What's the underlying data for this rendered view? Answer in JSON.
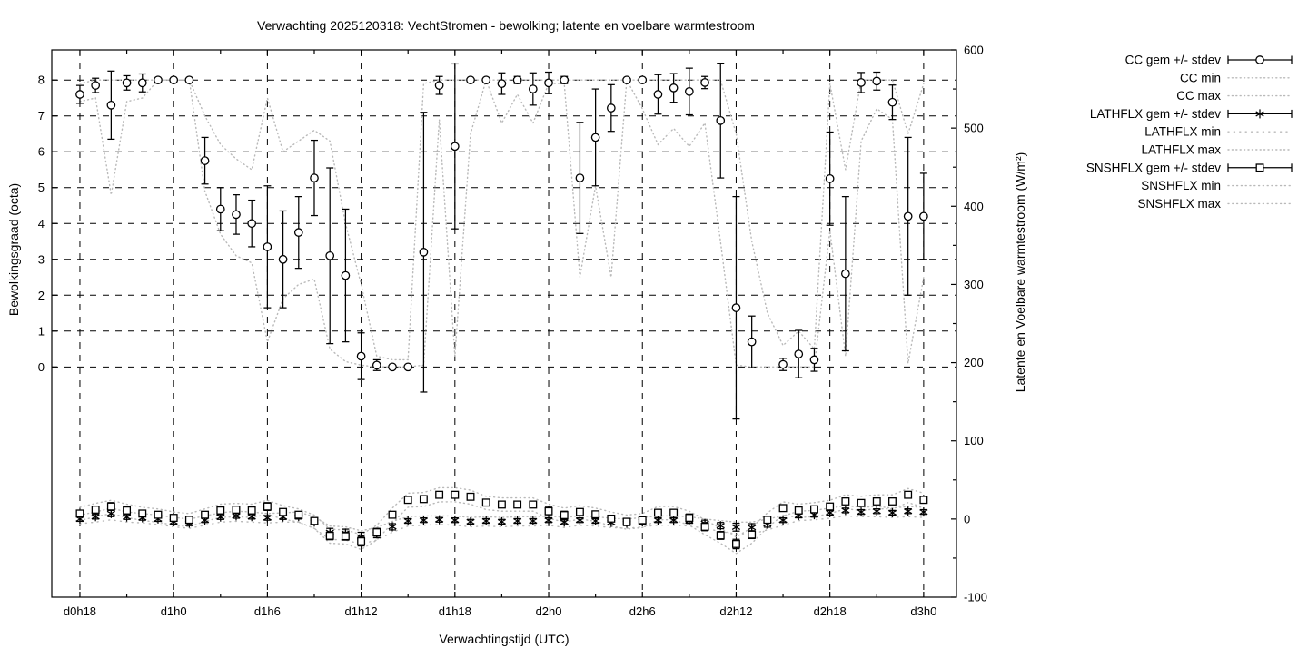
{
  "chart_data": {
    "type": "errorbar-line",
    "title": "Verwachting 2025120318: VechtStromen - bewolking; latente en voelbare warmtestroom",
    "xlabel": "Verwachtingstijd (UTC)",
    "ylabel_left": "Bewolkingsgraad (octa)",
    "ylabel_right": "Latente en Voelbare warmtestroom (W/m²)",
    "grid": true,
    "legend_position": "outside-top-right",
    "x_range_hours": [
      16.2,
      74.1
    ],
    "x_tick_hours": [
      18,
      24,
      30,
      36,
      42,
      48,
      54,
      60,
      66,
      72
    ],
    "x_tick_labels": [
      "d0h18",
      "d1h0",
      "d1h6",
      "d1h12",
      "d1h18",
      "d2h0",
      "d2h6",
      "d2h12",
      "d2h18",
      "d3h0"
    ],
    "x_minor_tick_hours": [
      21,
      27,
      33,
      39,
      45,
      51,
      57,
      63,
      69
    ],
    "y_left": {
      "range": [
        -6.42,
        8.84
      ],
      "ticks": [
        0,
        1,
        2,
        3,
        4,
        5,
        6,
        7,
        8
      ]
    },
    "y_right": {
      "range": [
        -100,
        600
      ],
      "ticks": [
        -100,
        0,
        100,
        200,
        300,
        400,
        500,
        600
      ],
      "minor_ticks": [
        -50,
        50,
        150,
        250,
        350,
        450,
        550
      ]
    },
    "hours": [
      18,
      19,
      20,
      21,
      22,
      23,
      24,
      25,
      26,
      27,
      28,
      29,
      30,
      31,
      32,
      33,
      34,
      35,
      36,
      37,
      38,
      39,
      40,
      41,
      42,
      43,
      44,
      45,
      46,
      47,
      48,
      49,
      50,
      51,
      52,
      53,
      54,
      55,
      56,
      57,
      58,
      59,
      60,
      61,
      62,
      63,
      64,
      65,
      66,
      67,
      68,
      69,
      70,
      71,
      72
    ],
    "series": [
      {
        "id": "cc",
        "name": "CC",
        "axis": "left",
        "marker": "circle",
        "legend_mean": "CC gem +/- stdev",
        "legend_min": "CC min",
        "legend_max": "CC max",
        "mean": [
          7.6,
          7.85,
          7.3,
          7.92,
          7.92,
          8,
          8,
          8,
          5.75,
          4.4,
          4.25,
          4.0,
          3.35,
          3.0,
          3.75,
          5.27,
          3.1,
          2.55,
          0.3,
          0.05,
          0,
          0,
          3.2,
          7.85,
          6.15,
          8,
          8,
          7.9,
          8,
          7.75,
          7.92,
          8,
          5.27,
          6.4,
          7.22,
          8,
          8,
          7.6,
          7.78,
          7.68,
          7.93,
          6.87,
          1.65,
          0.7,
          null,
          0.07,
          0.36,
          0.2,
          5.25,
          2.6,
          7.93,
          7.97,
          7.38,
          4.2,
          4.2
        ],
        "stdev": [
          0.25,
          0.2,
          0.95,
          0.2,
          0.25,
          0,
          0,
          0,
          0.65,
          0.6,
          0.55,
          0.65,
          1.7,
          1.35,
          1.0,
          1.05,
          2.45,
          1.85,
          0.65,
          0.15,
          0,
          0,
          3.9,
          0.25,
          2.3,
          0,
          0,
          0.3,
          0.1,
          0.45,
          0.3,
          0.1,
          1.55,
          1.35,
          0.65,
          0,
          0,
          0.55,
          0.4,
          0.65,
          0.17,
          1.6,
          3.1,
          0.72,
          null,
          0.17,
          0.66,
          0.32,
          1.3,
          2.15,
          0.28,
          0.25,
          0.48,
          2.2,
          1.2
        ],
        "min": [
          7.4,
          7.5,
          4.8,
          7.4,
          7.5,
          8,
          8,
          8,
          4.9,
          3.7,
          3.1,
          2.9,
          0.7,
          1.9,
          2.3,
          2.45,
          0.5,
          0.15,
          0.05,
          0,
          0,
          0,
          0.05,
          6.9,
          0.3,
          6.5,
          8,
          6.8,
          7.6,
          6.8,
          7.9,
          7.9,
          2.5,
          5.05,
          2.5,
          8,
          7.2,
          6.2,
          6.65,
          6.15,
          6.8,
          3.5,
          0.05,
          0,
          0,
          0,
          0,
          0,
          3.8,
          0.3,
          6.3,
          7.2,
          6.9,
          0.1,
          2.5
        ],
        "max": [
          7.9,
          8,
          8,
          8,
          8,
          8,
          8,
          8,
          7.0,
          6.2,
          5.8,
          5.5,
          7.5,
          6.0,
          6.3,
          6.6,
          6.3,
          4.0,
          2.3,
          0.3,
          0.2,
          0.2,
          7.9,
          8,
          8,
          8,
          8,
          8,
          8,
          8,
          8,
          8,
          8,
          8,
          8,
          8,
          8,
          8,
          8,
          8,
          8,
          8,
          6.5,
          3.5,
          1.5,
          0.6,
          1.0,
          0.5,
          7.9,
          5.5,
          8,
          8,
          8,
          6.5,
          7.9
        ]
      },
      {
        "id": "lathflx",
        "name": "LATHFLX",
        "axis": "right",
        "marker": "asterisk",
        "legend_mean": "LATHFLX gem +/- stdev",
        "legend_min": "LATHFLX min",
        "legend_max": "LATHFLX max",
        "mean": [
          0,
          3,
          7,
          2.5,
          1.5,
          0,
          -3.5,
          -5.5,
          -1.5,
          2.5,
          4,
          3,
          1.5,
          2.5,
          3,
          -4,
          -17,
          -18,
          -23,
          -19,
          -10,
          -2.5,
          -1.5,
          -1,
          -1.5,
          -3.5,
          -2.5,
          -3.5,
          -2.5,
          -2.5,
          -1.5,
          -4,
          -1.5,
          -2.5,
          -4.5,
          -5.5,
          -3.5,
          -1.5,
          -1.5,
          -2.5,
          -5.5,
          -8.5,
          -10.5,
          -11,
          -6.5,
          -1.5,
          4.5,
          5.5,
          8,
          11,
          9,
          10,
          8,
          10,
          9
        ],
        "stdev": [
          3,
          3,
          4,
          3,
          3,
          3,
          3,
          3,
          3,
          3,
          3,
          3,
          3,
          3,
          3,
          3,
          5,
          5,
          6,
          5,
          4,
          3,
          3,
          3,
          3,
          3,
          3,
          3,
          3,
          3,
          3,
          3,
          3,
          3,
          3,
          3,
          3,
          3,
          3,
          3,
          4,
          4,
          5,
          5,
          4,
          3,
          3,
          3,
          3,
          3,
          3,
          3,
          3,
          3,
          3
        ],
        "min": [
          -6,
          -4,
          -1,
          -4,
          -5,
          -7,
          -10,
          -12,
          -8,
          -4,
          -3,
          -4,
          -5,
          -4,
          -4,
          -12,
          -26,
          -27,
          -32,
          -27,
          -17,
          -9,
          -8,
          -7,
          -8,
          -10,
          -9,
          -10,
          -9,
          -9,
          -8,
          -11,
          -8,
          -9,
          -11,
          -12,
          -10,
          -8,
          -8,
          -9,
          -12,
          -16,
          -19,
          -19,
          -14,
          -8,
          -2,
          -1,
          1,
          4,
          3,
          3,
          2,
          3,
          2
        ],
        "max": [
          5,
          9,
          14,
          9,
          7,
          5,
          2,
          0,
          4,
          8,
          10,
          9,
          7,
          8,
          9,
          3,
          -9,
          -10,
          -15,
          -11,
          -3,
          3,
          4,
          4,
          4,
          2,
          3,
          2,
          3,
          3,
          4,
          2,
          4,
          3,
          1,
          0,
          2,
          4,
          4,
          3,
          0,
          -2,
          -4,
          -4,
          0,
          4,
          10,
          11,
          14,
          17,
          15,
          16,
          14,
          16,
          15
        ]
      },
      {
        "id": "snshflx",
        "name": "SNSHFLX",
        "axis": "right",
        "marker": "square",
        "legend_mean": "SNSHFLX gem +/- stdev",
        "legend_min": "SNSHFLX min",
        "legend_max": "SNSHFLX max",
        "mean": [
          7,
          12,
          16,
          11,
          7,
          5.5,
          1.5,
          -1,
          5.5,
          11,
          12,
          11,
          16,
          9,
          5.5,
          -2.5,
          -21.5,
          -22,
          -28.5,
          -17,
          5.5,
          24.5,
          25.5,
          31,
          31,
          28.5,
          21,
          18.5,
          18.5,
          18.5,
          10,
          5,
          9,
          6,
          0.5,
          -3.5,
          -1.5,
          8,
          8,
          1.5,
          -10,
          -21,
          -32,
          -20,
          -1,
          14,
          11,
          12.5,
          16,
          22.5,
          20.5,
          22.5,
          22.5,
          31,
          24.5
        ],
        "stdev": [
          4,
          4,
          5,
          4,
          4,
          4,
          4,
          4,
          4,
          4,
          4,
          4,
          5,
          4,
          4,
          4,
          5,
          5,
          6,
          5,
          4,
          4,
          4,
          4,
          4,
          4,
          4,
          4,
          4,
          4,
          6,
          5,
          4,
          4,
          4,
          4,
          4,
          4,
          4,
          5,
          5,
          5,
          6,
          5,
          4,
          4,
          4,
          4,
          4,
          4,
          4,
          4,
          4,
          4,
          4
        ],
        "min": [
          -2,
          3,
          7,
          2,
          -2,
          -4,
          -8,
          -10,
          -3,
          2,
          3,
          2,
          6,
          0,
          -4,
          -12,
          -31,
          -32,
          -39,
          -27,
          -5,
          15,
          16,
          22,
          22,
          19,
          12,
          10,
          10,
          10,
          1,
          -4,
          0,
          -3,
          -9,
          -13,
          -11,
          -1,
          -1,
          -8,
          -20,
          -31,
          -44,
          -31,
          -11,
          5,
          2,
          3,
          7,
          13,
          11,
          13,
          13,
          21,
          15
        ],
        "max": [
          15,
          20,
          24,
          19,
          15,
          13,
          9,
          7,
          13,
          19,
          20,
          19,
          24,
          17,
          13,
          5,
          -13,
          -14,
          -20,
          -8,
          14,
          33,
          34,
          40,
          40,
          37,
          29,
          27,
          27,
          27,
          19,
          14,
          17,
          14,
          9,
          5,
          7,
          16,
          16,
          10,
          -1,
          -12,
          -23,
          -11,
          8,
          22,
          19,
          21,
          24,
          31,
          29,
          31,
          31,
          39,
          33
        ]
      }
    ],
    "colors": {
      "foreground": "#000000",
      "minmax_line": "#b9b9b9",
      "background": "#ffffff"
    }
  }
}
